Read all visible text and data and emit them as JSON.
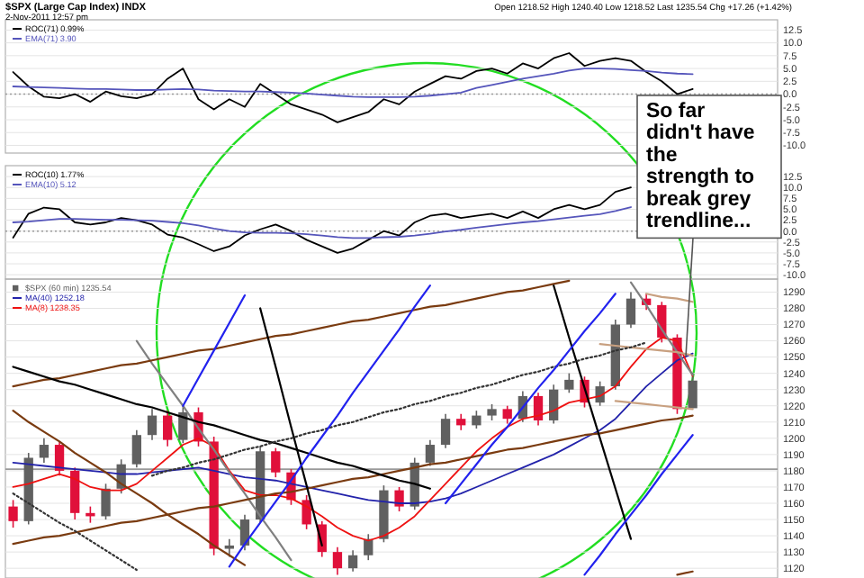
{
  "chart_data": [
    {
      "type": "line",
      "title": "$SPX (Large Cap Index) INDX",
      "subtitle": "2-Nov-2011 12:57 pm",
      "annotations": [
        "Open 1218.52  High 1240.40  Low 1218.52  Last 1235.54  Chg +17.26 (+1.42%)"
      ],
      "categories": [
        null,
        null,
        null,
        null,
        null,
        null,
        null,
        null,
        null,
        null,
        null,
        null,
        null,
        null,
        null,
        null,
        null,
        null,
        null,
        null,
        null,
        null,
        null,
        null,
        null,
        null,
        null,
        null,
        null,
        null,
        null,
        null,
        null,
        null,
        null,
        null,
        null,
        null,
        null,
        null,
        null,
        null,
        null,
        null,
        null
      ],
      "ylim": [
        -11.5,
        14.5
      ],
      "yticks": [
        {
          "value": 12.5,
          "label": "12.5"
        },
        {
          "value": 10,
          "label": "10.0"
        },
        {
          "value": 7.5,
          "label": "7.5"
        },
        {
          "value": 5,
          "label": "5.0"
        },
        {
          "value": 2.5,
          "label": "2.5"
        },
        {
          "value": 0,
          "label": "0.0"
        },
        {
          "value": -2.5,
          "label": "-2.5"
        },
        {
          "value": -5,
          "label": "-5.0"
        },
        {
          "value": -7.5,
          "label": "-7.5"
        },
        {
          "value": -10,
          "label": "-10.0"
        }
      ],
      "tick_labels": "y",
      "grid": "y",
      "legend": "top left",
      "ref_lines": [
        {
          "axis": "y",
          "value": 0,
          "color": "#999999",
          "line_style": "dotted"
        }
      ],
      "series": [
        {
          "name": "ROC(71) 0.99%",
          "color": "#000000",
          "values": [
            4.3,
            1.5,
            -0.5,
            -0.8,
            0,
            -1.5,
            0.5,
            -0.4,
            -0.8,
            0,
            3,
            5,
            -1,
            -3,
            -1,
            -2.5,
            2,
            0,
            -2,
            -3,
            -4,
            -5.5,
            -4.5,
            -3.5,
            -1,
            -2,
            0.5,
            2,
            3.5,
            3,
            4.5,
            5,
            4,
            6,
            5,
            7,
            8,
            5.5,
            6.5,
            7,
            6.5,
            4.3,
            2.5,
            0,
            0.99
          ]
        },
        {
          "name": "EMA(71) 3.90",
          "color": "#5555bb",
          "values": [
            1.5,
            1.4,
            1.3,
            1.2,
            1.1,
            1,
            1,
            0.9,
            0.8,
            0.8,
            0.9,
            1,
            0.9,
            0.7,
            0.6,
            0.5,
            0.5,
            0.4,
            0.3,
            0.1,
            -0.1,
            -0.3,
            -0.5,
            -0.6,
            -0.6,
            -0.6,
            -0.5,
            -0.3,
            0,
            0.3,
            1.2,
            1.8,
            2.4,
            3,
            3.5,
            4,
            4.6,
            5,
            5,
            4.9,
            4.7,
            4.5,
            4.2,
            4,
            3.9
          ]
        }
      ]
    },
    {
      "type": "line",
      "categories": [
        null,
        null,
        null,
        null,
        null,
        null,
        null,
        null,
        null,
        null,
        null,
        null,
        null,
        null,
        null,
        null,
        null,
        null,
        null,
        null,
        null,
        null,
        null,
        null,
        null,
        null,
        null,
        null,
        null,
        null,
        null,
        null,
        null,
        null,
        null,
        null,
        null,
        null,
        null,
        null,
        null,
        null,
        null,
        null,
        null
      ],
      "ylim": [
        -11,
        15
      ],
      "yticks": [
        {
          "value": 12.5,
          "label": "12.5"
        },
        {
          "value": 10,
          "label": "10.0"
        },
        {
          "value": 7.5,
          "label": "7.5"
        },
        {
          "value": 5,
          "label": "5.0"
        },
        {
          "value": 2.5,
          "label": "2.5"
        },
        {
          "value": 0,
          "label": "0.0"
        },
        {
          "value": -2.5,
          "label": "-2.5"
        },
        {
          "value": -5,
          "label": "-5.0"
        },
        {
          "value": -7.5,
          "label": "-7.5"
        },
        {
          "value": -10,
          "label": "-10.0"
        }
      ],
      "tick_labels": "y",
      "grid": "y",
      "legend": "top left",
      "ref_lines": [
        {
          "axis": "y",
          "value": 0,
          "color": "#999999",
          "line_style": "dotted"
        }
      ],
      "series": [
        {
          "name": "ROC(10) 1.77%",
          "color": "#000000",
          "values": [
            -1.5,
            4,
            5.4,
            5,
            2,
            1.5,
            2,
            3,
            2.5,
            1.5,
            -0.8,
            -1.5,
            -3,
            -4.6,
            -3.5,
            -1,
            0.4,
            1.5,
            0,
            -2,
            -3.5,
            -5,
            -4,
            -2,
            0,
            -1,
            2,
            3.5,
            4,
            3,
            3.5,
            4,
            3,
            4.5,
            3,
            5,
            6,
            5,
            6,
            9,
            10,
            null,
            null,
            null,
            null
          ]
        },
        {
          "name": "EMA(10) 5.12",
          "color": "#5555bb",
          "values": [
            2,
            2.2,
            2.5,
            2.8,
            2.8,
            2.7,
            2.6,
            2.6,
            2.5,
            2.4,
            2.1,
            1.8,
            1.3,
            0.6,
            0,
            -0.3,
            -0.4,
            -0.4,
            -0.5,
            -0.7,
            -1,
            -1.4,
            -1.6,
            -1.6,
            -1.4,
            -1.3,
            -1,
            -0.6,
            -0.1,
            0.3,
            0.8,
            1.2,
            1.6,
            2,
            2.3,
            2.7,
            3.1,
            3.5,
            3.9,
            4.6,
            5.5,
            null,
            null,
            null,
            null
          ]
        }
      ]
    },
    {
      "type": "candlestick",
      "annotations": [
        "So far didn't have the strength to break grey trendline..."
      ],
      "categories": [
        null,
        null,
        null,
        null,
        null,
        null,
        null,
        null,
        null,
        null,
        null,
        null,
        null,
        null,
        null,
        null,
        null,
        null,
        null,
        null,
        null,
        null,
        null,
        null,
        null,
        null,
        null,
        null,
        null,
        null,
        null,
        null,
        null,
        null,
        null,
        null,
        null,
        null,
        null,
        null,
        null,
        null,
        null,
        null,
        null
      ],
      "ylim": [
        1114,
        1298
      ],
      "yticks": [
        1120,
        1130,
        1140,
        1150,
        1160,
        1170,
        1180,
        1190,
        1200,
        1210,
        1220,
        1230,
        1240,
        1250,
        1260,
        1270,
        1280,
        1290
      ],
      "tick_labels": "y",
      "grid": "y",
      "legend": "top left",
      "ref_lines": [
        {
          "axis": "y",
          "value": 1181,
          "color": "#999999",
          "line_style": "solid"
        }
      ],
      "series": [
        {
          "name": "$SPX (60 min) 1235.54",
          "color": "#606060",
          "colors": [
            "#e0103a",
            "#606060",
            "#606060",
            "#e0103a",
            "#e0103a",
            "#e0103a",
            "#606060",
            "#606060",
            "#606060",
            "#606060",
            "#e0103a",
            "#606060",
            "#e0103a",
            "#e0103a",
            "#606060",
            "#606060",
            "#606060",
            "#e0103a",
            "#e0103a",
            "#e0103a",
            "#e0103a",
            "#e0103a",
            "#606060",
            "#606060",
            "#606060",
            "#e0103a",
            "#606060",
            "#606060",
            "#606060",
            "#e0103a",
            "#606060",
            "#606060",
            "#e0103a",
            "#606060",
            "#e0103a",
            "#606060",
            "#606060",
            "#e0103a",
            "#606060",
            "#606060",
            "#606060",
            "#e0103a",
            "#e0103a",
            "#e0103a",
            "#606060"
          ],
          "ohlc": [
            [
              1158,
              1162,
              1145,
              1149
            ],
            [
              1149,
              1191,
              1147,
              1188
            ],
            [
              1188,
              1200,
              1185,
              1196
            ],
            [
              1196,
              1198,
              1177,
              1180
            ],
            [
              1180,
              1182,
              1150,
              1154
            ],
            [
              1154,
              1158,
              1148,
              1152
            ],
            [
              1152,
              1172,
              1150,
              1169
            ],
            [
              1169,
              1187,
              1166,
              1184
            ],
            [
              1184,
              1205,
              1182,
              1202
            ],
            [
              1202,
              1218,
              1199,
              1214
            ],
            [
              1214,
              1217,
              1195,
              1199
            ],
            [
              1199,
              1220,
              1197,
              1216
            ],
            [
              1216,
              1219,
              1195,
              1198
            ],
            [
              1198,
              1201,
              1128,
              1132
            ],
            [
              1132,
              1138,
              1127,
              1134
            ],
            [
              1134,
              1153,
              1131,
              1150
            ],
            [
              1150,
              1195,
              1148,
              1192
            ],
            [
              1192,
              1194,
              1176,
              1179
            ],
            [
              1179,
              1181,
              1159,
              1162
            ],
            [
              1162,
              1165,
              1144,
              1147
            ],
            [
              1147,
              1149,
              1127,
              1130
            ],
            [
              1130,
              1133,
              1116,
              1120
            ],
            [
              1120,
              1131,
              1118,
              1128
            ],
            [
              1128,
              1141,
              1125,
              1138
            ],
            [
              1138,
              1171,
              1136,
              1168
            ],
            [
              1168,
              1170,
              1155,
              1158
            ],
            [
              1158,
              1188,
              1156,
              1185
            ],
            [
              1185,
              1199,
              1183,
              1196
            ],
            [
              1196,
              1215,
              1194,
              1212
            ],
            [
              1212,
              1215,
              1205,
              1208
            ],
            [
              1208,
              1217,
              1206,
              1214
            ],
            [
              1214,
              1221,
              1211,
              1218
            ],
            [
              1218,
              1220,
              1209,
              1212
            ],
            [
              1212,
              1229,
              1210,
              1226
            ],
            [
              1226,
              1228,
              1208,
              1211
            ],
            [
              1211,
              1233,
              1209,
              1230
            ],
            [
              1230,
              1240,
              1228,
              1236
            ],
            [
              1236,
              1238,
              1219,
              1222
            ],
            [
              1222,
              1235,
              1220,
              1232
            ],
            [
              1232,
              1273,
              1230,
              1270
            ],
            [
              1270,
              1290,
              1268,
              1286
            ],
            [
              1286,
              1289,
              1279,
              1282
            ],
            [
              1282,
              1284,
              1259,
              1262
            ],
            [
              1262,
              1264,
              1215,
              1218
            ],
            [
              1218.52,
              1240.4,
              1218.52,
              1235.54
            ]
          ]
        },
        {
          "type": "line",
          "name": "MA(40) 1252.18",
          "color": "#2222aa",
          "values": [
            1185,
            1184,
            1183,
            1182,
            1181,
            1180,
            1179,
            1178,
            1178,
            1179,
            1180,
            1181,
            1182,
            1180,
            1178,
            1176,
            1175,
            1174,
            1172,
            1170,
            1168,
            1166,
            1164,
            1162,
            1161,
            1160,
            1160,
            1161,
            1163,
            1166,
            1170,
            1174,
            1178,
            1182,
            1186,
            1190,
            1195,
            1200,
            1205,
            1212,
            1222,
            1232,
            1240,
            1248,
            1252.18
          ]
        },
        {
          "type": "line",
          "name": "MA(8) 1238.35",
          "color": "#ee1111",
          "values": [
            1170,
            1172,
            1175,
            1178,
            1175,
            1170,
            1168,
            1168,
            1172,
            1180,
            1188,
            1196,
            1200,
            1195,
            1180,
            1168,
            1165,
            1165,
            1163,
            1158,
            1152,
            1145,
            1140,
            1137,
            1140,
            1145,
            1152,
            1162,
            1172,
            1182,
            1192,
            1200,
            1207,
            1212,
            1214,
            1217,
            1222,
            1224,
            1226,
            1232,
            1244,
            1255,
            1262,
            1260,
            1238.35
          ]
        },
        {
          "type": "line",
          "color": "#808080",
          "values": [
            null,
            null,
            null,
            null,
            null,
            null,
            null,
            null,
            null,
            null,
            null,
            null,
            null,
            null,
            null,
            null,
            null,
            null,
            null,
            null,
            null,
            null,
            null,
            null,
            null,
            null,
            null,
            null,
            null,
            null,
            null,
            null,
            null,
            null,
            null,
            null,
            null,
            null,
            null,
            null,
            1296,
            1282,
            1267,
            1253,
            1239
          ]
        },
        {
          "type": "line",
          "color": "#808080",
          "values": [
            null,
            null,
            null,
            null,
            null,
            null,
            null,
            null,
            1260,
            1246,
            1233,
            1220,
            1206,
            1193,
            1179,
            1166,
            1152,
            1139,
            1125,
            null,
            null,
            null,
            null,
            null,
            null,
            null,
            null,
            null,
            null,
            null,
            null,
            null,
            null,
            null,
            null,
            null,
            null,
            null,
            null,
            null,
            null,
            null,
            null,
            null,
            null
          ]
        },
        {
          "type": "line",
          "color": "#7a3b10",
          "values": [
            1135,
            1137,
            1139,
            1140,
            1142,
            1144,
            1146,
            1148,
            1149,
            1151,
            1153,
            1155,
            1157,
            1158,
            1160,
            1162,
            1164,
            1166,
            1167,
            1169,
            1171,
            1173,
            1175,
            1176,
            1178,
            1180,
            1182,
            1184,
            1185,
            1187,
            1189,
            1191,
            1193,
            1194,
            1196,
            1198,
            1200,
            1202,
            1203,
            1205,
            1207,
            1209,
            1211,
            1212,
            1214
          ]
        },
        {
          "type": "line",
          "color": "#7a3b10",
          "values": [
            1232,
            1234,
            1236,
            1237,
            1239,
            1241,
            1243,
            1245,
            1246,
            1248,
            1250,
            1252,
            1254,
            1255,
            1257,
            1259,
            1261,
            1263,
            1264,
            1266,
            1268,
            1270,
            1272,
            1273,
            1275,
            1277,
            1279,
            1281,
            1282,
            1284,
            1286,
            1288,
            1290,
            1291,
            1293,
            1295,
            1297,
            null,
            null,
            null,
            null,
            null,
            null,
            null,
            null
          ]
        },
        {
          "type": "line",
          "color": "#7a3b10",
          "values": [
            1217,
            1210,
            1204,
            1198,
            1191,
            1185,
            1179,
            1172,
            1166,
            1160,
            1153,
            1147,
            1141,
            1134,
            1128,
            1122,
            null,
            null,
            null,
            null,
            null,
            null,
            null,
            null,
            null,
            null,
            null,
            null,
            null,
            null,
            null,
            null,
            null,
            null,
            null,
            null,
            null,
            null,
            null,
            null,
            null,
            null,
            null,
            null,
            null
          ]
        },
        {
          "type": "line",
          "color": "#7a3b10",
          "values": [
            null,
            null,
            null,
            null,
            null,
            null,
            null,
            null,
            null,
            null,
            null,
            null,
            null,
            null,
            null,
            null,
            null,
            null,
            null,
            null,
            null,
            null,
            null,
            null,
            null,
            null,
            null,
            null,
            null,
            null,
            null,
            null,
            null,
            null,
            null,
            null,
            null,
            null,
            null,
            null,
            null,
            null,
            null,
            1116,
            1118
          ]
        },
        {
          "type": "line",
          "color": "#c8a080",
          "values": [
            null,
            null,
            null,
            null,
            null,
            null,
            null,
            null,
            null,
            null,
            null,
            null,
            null,
            null,
            null,
            null,
            null,
            null,
            null,
            null,
            null,
            null,
            null,
            null,
            null,
            null,
            null,
            null,
            null,
            null,
            null,
            null,
            null,
            null,
            null,
            null,
            null,
            null,
            null,
            null,
            null,
            1289,
            1287,
            1286,
            1284
          ]
        },
        {
          "type": "line",
          "color": "#c8a080",
          "values": [
            null,
            null,
            null,
            null,
            null,
            null,
            null,
            null,
            null,
            null,
            null,
            null,
            null,
            null,
            null,
            null,
            null,
            null,
            null,
            null,
            null,
            null,
            null,
            null,
            null,
            null,
            null,
            null,
            null,
            null,
            null,
            null,
            null,
            null,
            null,
            null,
            null,
            null,
            1258,
            1257,
            1256,
            1255,
            1254,
            1253,
            1251
          ]
        },
        {
          "type": "line",
          "color": "#c8a080",
          "values": [
            null,
            null,
            null,
            null,
            null,
            null,
            null,
            null,
            null,
            null,
            null,
            null,
            null,
            null,
            null,
            null,
            null,
            null,
            null,
            null,
            null,
            null,
            null,
            null,
            null,
            null,
            null,
            null,
            null,
            null,
            null,
            null,
            null,
            null,
            null,
            null,
            null,
            null,
            null,
            1223,
            1222,
            1221,
            1220,
            1219,
            1218
          ]
        },
        {
          "type": "line",
          "color": "#000000",
          "values": [
            null,
            null,
            null,
            null,
            null,
            null,
            null,
            null,
            null,
            null,
            null,
            null,
            null,
            null,
            null,
            null,
            null,
            null,
            null,
            null,
            null,
            null,
            null,
            null,
            null,
            null,
            null,
            null,
            null,
            null,
            null,
            null,
            null,
            null,
            null,
            1294,
            1262,
            1231,
            1200,
            1169,
            1138,
            null,
            null,
            null,
            null
          ]
        },
        {
          "type": "line",
          "color": "#000000",
          "values": [
            null,
            null,
            null,
            null,
            null,
            null,
            null,
            null,
            null,
            null,
            null,
            null,
            null,
            null,
            null,
            null,
            1280,
            1244,
            1207,
            1171,
            1134,
            null,
            null,
            null,
            null,
            null,
            null,
            null,
            null,
            null,
            null,
            null,
            null,
            null,
            null,
            null,
            null,
            null,
            null,
            null,
            null,
            null,
            null,
            null,
            null
          ]
        },
        {
          "type": "line",
          "color": "#000000",
          "values": [
            1244,
            1241,
            1238,
            1235,
            1233,
            1230,
            1227,
            1224,
            1221,
            1219,
            1216,
            1213,
            1210,
            1208,
            1205,
            1202,
            1199,
            1197,
            1194,
            1191,
            1188,
            1185,
            1183,
            1180,
            1177,
            1174,
            1172,
            1169,
            null,
            null,
            null,
            null,
            null,
            null,
            null,
            null,
            null,
            null,
            null,
            null,
            null,
            null,
            null,
            null,
            null
          ]
        },
        {
          "type": "line",
          "color": "#333333",
          "line_style": "dotted",
          "values": [
            1166,
            1160,
            1154,
            1148,
            1143,
            1137,
            1131,
            1125,
            1119,
            null,
            null,
            null,
            null,
            null,
            null,
            null,
            null,
            null,
            null,
            null,
            null,
            null,
            null,
            null,
            null,
            null,
            null,
            null,
            null,
            null,
            null,
            null,
            null,
            null,
            null,
            null,
            null,
            null,
            null,
            null,
            null,
            null,
            null,
            null,
            null
          ]
        },
        {
          "type": "line",
          "color": "#333333",
          "line_style": "dotted",
          "values": [
            null,
            null,
            null,
            null,
            null,
            null,
            null,
            null,
            null,
            1177,
            1180,
            1182,
            1185,
            1187,
            1190,
            1193,
            1195,
            1198,
            1200,
            1203,
            1205,
            1208,
            1210,
            1213,
            1216,
            1218,
            1221,
            1223,
            1226,
            1228,
            1231,
            1233,
            1236,
            1239,
            1241,
            1244,
            1246,
            1249,
            1251,
            1254,
            1256,
            1259,
            null,
            null,
            null
          ]
        },
        {
          "type": "line",
          "color": "#2222ee",
          "values": [
            null,
            null,
            null,
            null,
            null,
            null,
            null,
            null,
            null,
            null,
            null,
            null,
            null,
            null,
            1121,
            1135,
            1148,
            1161,
            1174,
            1188,
            1201,
            1214,
            1228,
            1241,
            1254,
            1267,
            1281,
            1294,
            null,
            null,
            null,
            null,
            null,
            null,
            null,
            null,
            null,
            null,
            null,
            null,
            null,
            null,
            null,
            null,
            null
          ]
        },
        {
          "type": "line",
          "color": "#2222ee",
          "values": [
            null,
            null,
            null,
            null,
            null,
            null,
            null,
            null,
            null,
            null,
            null,
            null,
            null,
            null,
            null,
            null,
            null,
            null,
            null,
            null,
            null,
            null,
            null,
            null,
            null,
            null,
            null,
            null,
            1160,
            1172,
            1184,
            1196,
            1207,
            1219,
            1231,
            1242,
            1254,
            1266,
            1277,
            1289,
            null,
            null,
            null,
            null,
            null
          ]
        },
        {
          "type": "line",
          "color": "#2222ee",
          "values": [
            null,
            null,
            null,
            null,
            null,
            null,
            null,
            null,
            null,
            null,
            null,
            1220,
            1237,
            1254,
            1271,
            1288,
            null,
            null,
            null,
            null,
            null,
            null,
            null,
            null,
            null,
            null,
            null,
            null,
            null,
            null,
            null,
            null,
            null,
            null,
            null,
            null,
            null,
            null,
            null,
            null,
            null,
            null,
            null,
            null,
            null
          ]
        },
        {
          "type": "line",
          "color": "#2222ee",
          "values": [
            null,
            null,
            null,
            null,
            null,
            null,
            null,
            null,
            null,
            null,
            null,
            null,
            null,
            null,
            null,
            null,
            null,
            null,
            null,
            null,
            null,
            null,
            null,
            null,
            null,
            null,
            null,
            null,
            null,
            null,
            null,
            null,
            null,
            null,
            null,
            null,
            null,
            1116,
            1128,
            1141,
            1153,
            1165,
            1178,
            1190,
            1202
          ]
        }
      ]
    }
  ]
}
